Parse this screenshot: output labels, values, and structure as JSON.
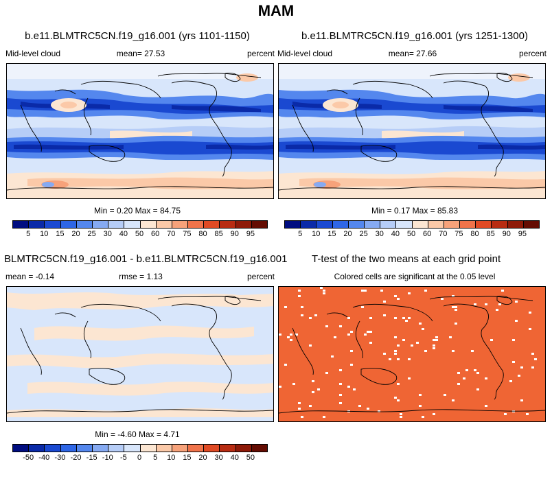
{
  "main_title": "MAM",
  "panels": [
    {
      "title": "b.e11.BLMTRC5CN.f19_g16.001 (yrs 1101-1150)",
      "left_label": "Mid-level cloud",
      "center_label": "mean=  27.53",
      "right_label": "percent",
      "minmax": "Min =   0.20 Max =  84.75"
    },
    {
      "title": "b.e11.BLMTRC5CN.f19_g16.001 (yrs 1251-1300)",
      "left_label": "Mid-level cloud",
      "center_label": "mean=  27.66",
      "right_label": "percent",
      "minmax": "Min =   0.17 Max =  85.83"
    },
    {
      "title": "BLMTRC5CN.f19_g16.001 - b.e11.BLMTRC5CN.f19_g16.001",
      "left_label": "mean =  -0.14",
      "center_label": "rmse =   1.13",
      "right_label": "percent",
      "minmax": "Min =  -4.60 Max =   4.71"
    },
    {
      "title": "T-test of the two means at each grid point",
      "subtitle": "Colored cells are significant at the 0.05 level"
    }
  ],
  "colorbar_abs": {
    "labels": [
      "5",
      "10",
      "15",
      "20",
      "25",
      "30",
      "40",
      "50",
      "60",
      "70",
      "75",
      "80",
      "85",
      "90",
      "95"
    ]
  },
  "colorbar_diff": {
    "labels": [
      "-50",
      "-40",
      "-30",
      "-20",
      "-15",
      "-10",
      "-5",
      "0",
      "5",
      "10",
      "15",
      "20",
      "30",
      "40",
      "50"
    ]
  },
  "colors": {
    "palette": [
      "#000d80",
      "#0a2aa8",
      "#1a49d1",
      "#2e66e6",
      "#5487ee",
      "#86aaf2",
      "#b6cdf7",
      "#d8e6fb",
      "#fce6d2",
      "#fbc9a8",
      "#f7a27a",
      "#f0734a",
      "#e04a24",
      "#b82c12",
      "#8e1a08",
      "#640c02"
    ],
    "ttest": "#ef6534"
  }
}
